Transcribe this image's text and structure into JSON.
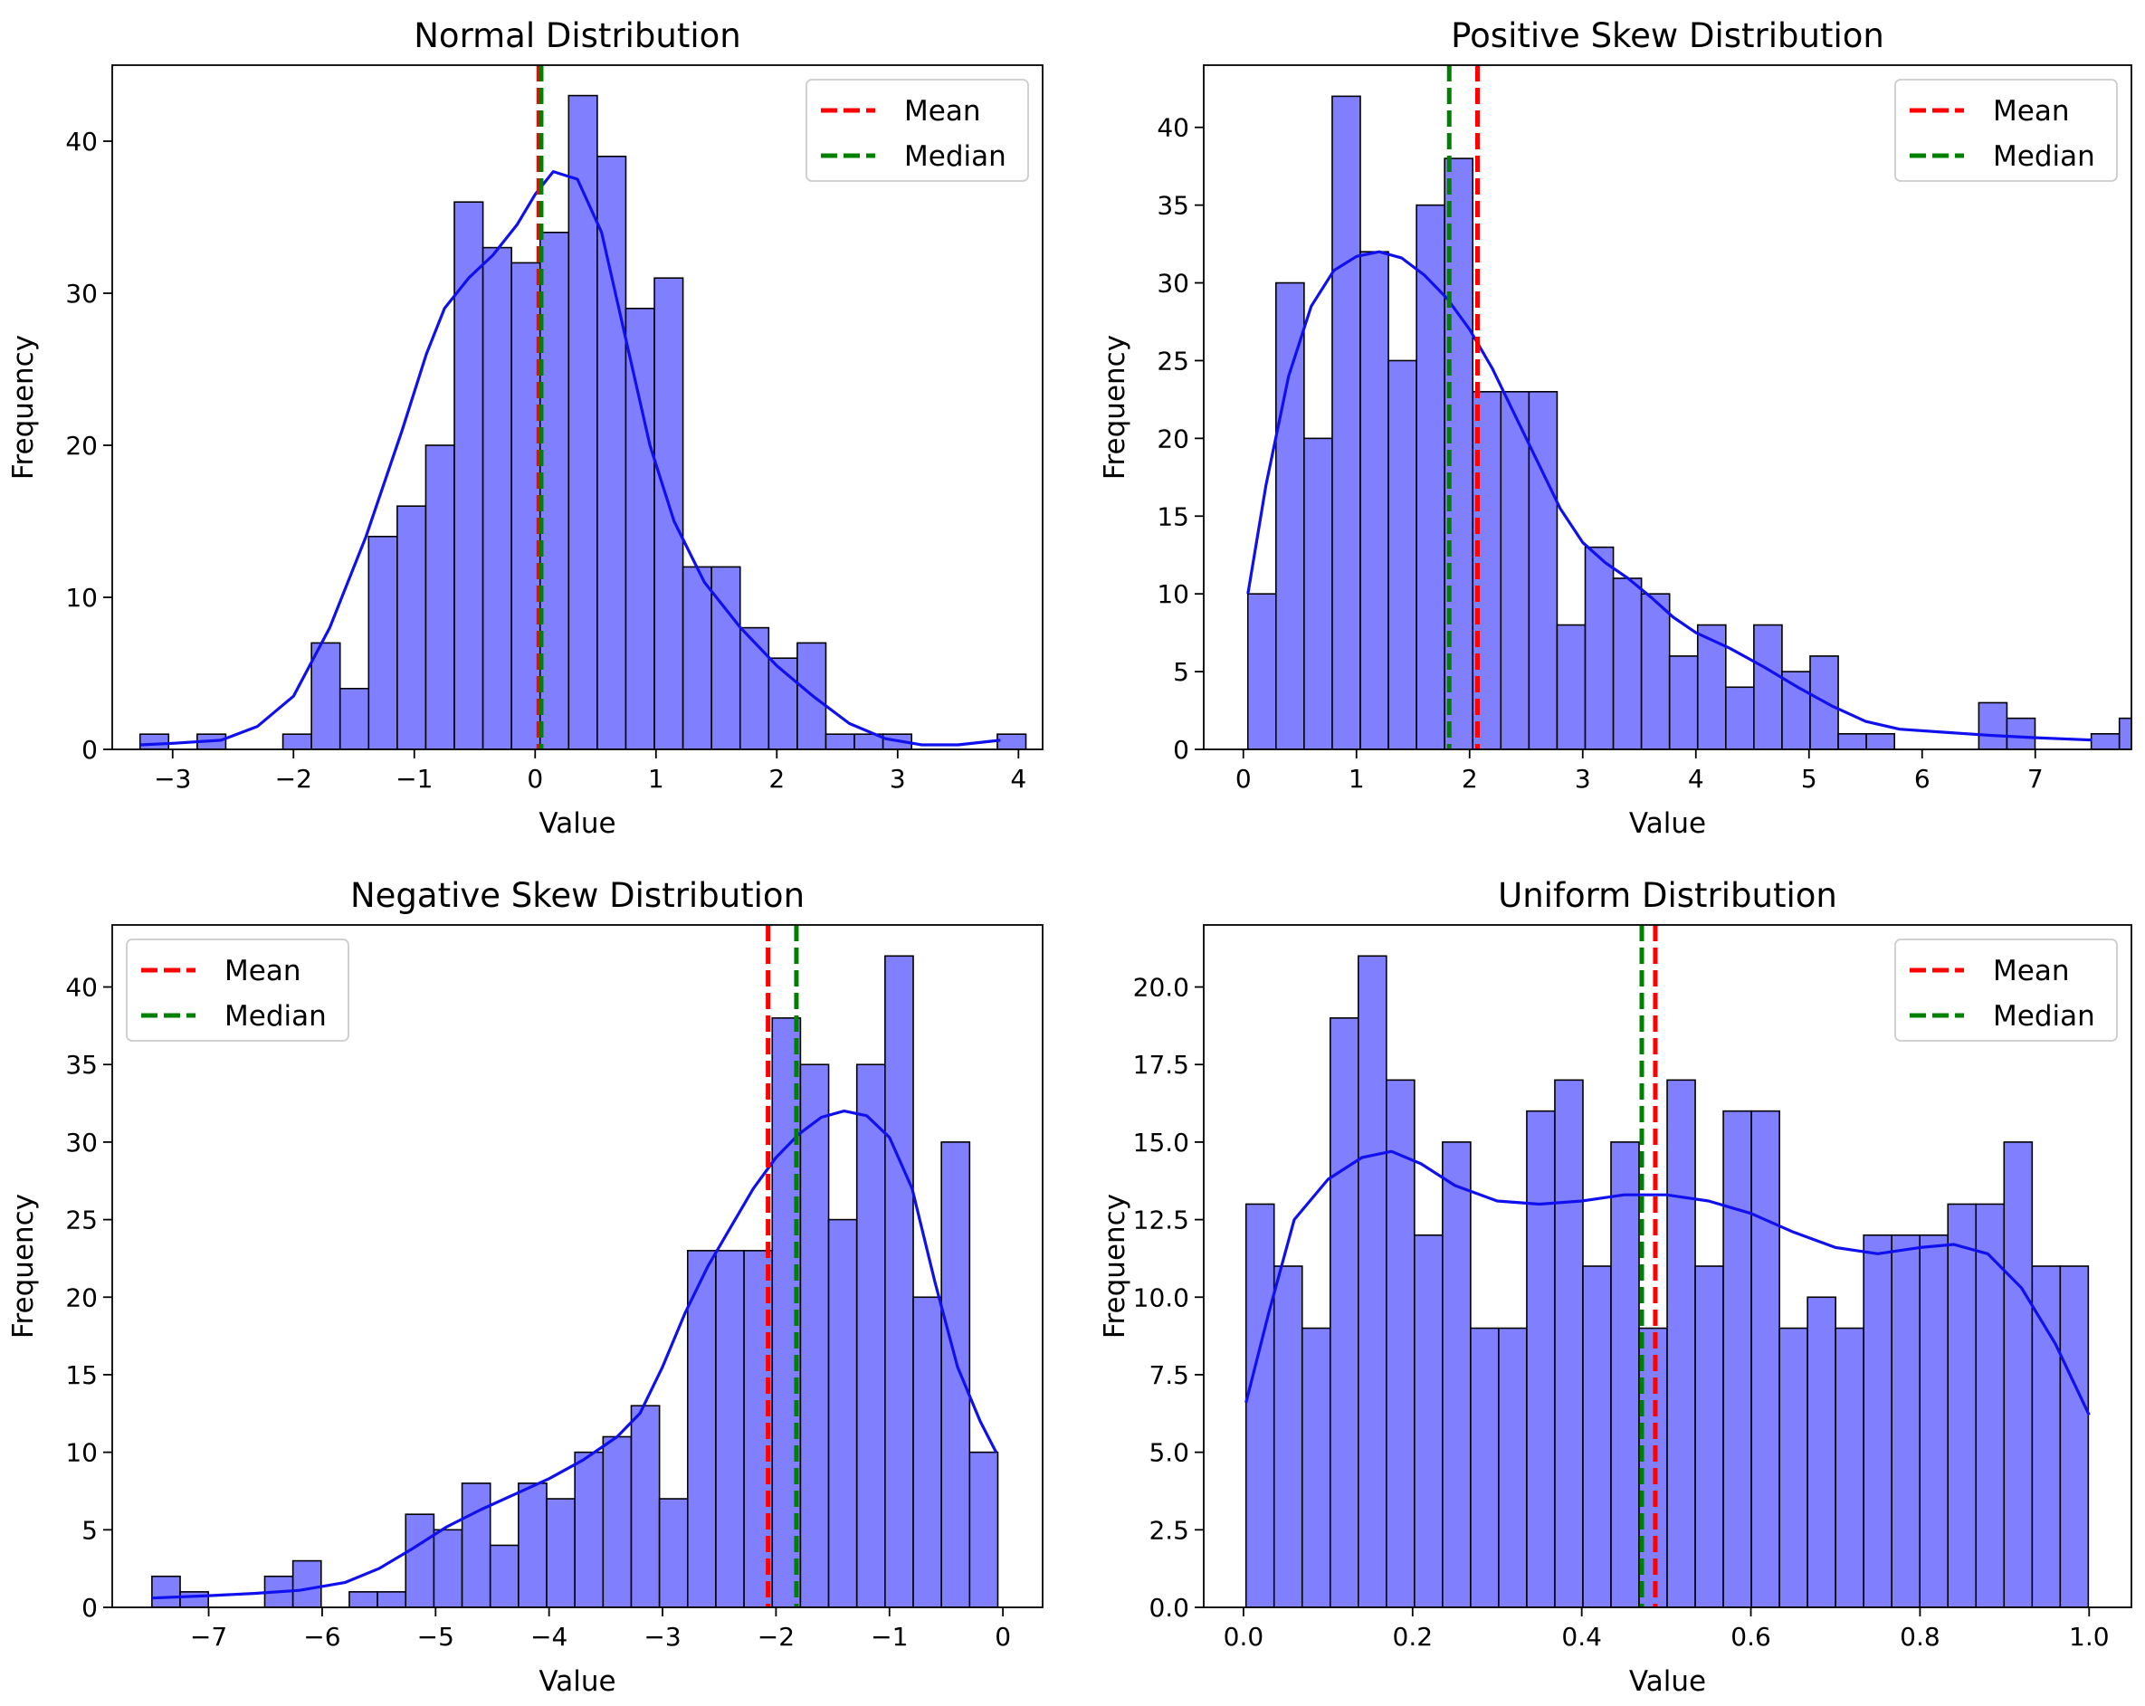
{
  "chart_data": [
    {
      "type": "histogram",
      "title": "Normal Distribution",
      "xlabel": "Value",
      "ylabel": "Frequency",
      "xlim": [
        -3.5,
        4.2
      ],
      "ylim": [
        0,
        45
      ],
      "xticks": [
        -3,
        -2,
        -1,
        0,
        1,
        2,
        3,
        4
      ],
      "xtick_labels": [
        "−3",
        "−2",
        "−1",
        "0",
        "1",
        "2",
        "3",
        "4"
      ],
      "yticks": [
        0,
        10,
        20,
        30,
        40
      ],
      "ytick_labels": [
        "0",
        "10",
        "20",
        "30",
        "40"
      ],
      "bin_start": -3.27,
      "bin_width": 0.2365,
      "counts": [
        1,
        0,
        1,
        0,
        0,
        1,
        7,
        4,
        14,
        16,
        20,
        36,
        33,
        32,
        34,
        43,
        39,
        29,
        31,
        12,
        12,
        8,
        6,
        7,
        1,
        1,
        1,
        0,
        0,
        0,
        1
      ],
      "kde": [
        [
          -3.27,
          0.3
        ],
        [
          -3.0,
          0.4
        ],
        [
          -2.6,
          0.6
        ],
        [
          -2.3,
          1.5
        ],
        [
          -2.0,
          3.5
        ],
        [
          -1.7,
          8
        ],
        [
          -1.4,
          14
        ],
        [
          -1.1,
          21
        ],
        [
          -0.9,
          26
        ],
        [
          -0.75,
          29
        ],
        [
          -0.55,
          31
        ],
        [
          -0.35,
          32.5
        ],
        [
          -0.15,
          34.5
        ],
        [
          0.0,
          36.5
        ],
        [
          0.15,
          38
        ],
        [
          0.35,
          37.5
        ],
        [
          0.55,
          34
        ],
        [
          0.75,
          27
        ],
        [
          0.95,
          20
        ],
        [
          1.15,
          15
        ],
        [
          1.4,
          11
        ],
        [
          1.7,
          8
        ],
        [
          2.0,
          5.5
        ],
        [
          2.3,
          3.5
        ],
        [
          2.6,
          1.7
        ],
        [
          2.9,
          0.7
        ],
        [
          3.2,
          0.3
        ],
        [
          3.5,
          0.3
        ],
        [
          3.85,
          0.6
        ]
      ],
      "mean": 0.03,
      "median": 0.05,
      "legend_position": "upper right",
      "legend": [
        "Mean",
        "Median"
      ]
    },
    {
      "type": "histogram",
      "title": "Positive Skew Distribution",
      "xlabel": "Value",
      "ylabel": "Frequency",
      "xlim": [
        -0.35,
        7.85
      ],
      "ylim": [
        0,
        44
      ],
      "xticks": [
        0,
        1,
        2,
        3,
        4,
        5,
        6,
        7
      ],
      "xtick_labels": [
        "0",
        "1",
        "2",
        "3",
        "4",
        "5",
        "6",
        "7"
      ],
      "yticks": [
        0,
        5,
        10,
        15,
        20,
        25,
        30,
        35,
        40
      ],
      "ytick_labels": [
        "0",
        "5",
        "10",
        "15",
        "20",
        "25",
        "30",
        "35",
        "40"
      ],
      "bin_start": 0.04,
      "bin_width": 0.2485,
      "counts": [
        10,
        30,
        20,
        42,
        32,
        25,
        35,
        38,
        23,
        23,
        23,
        8,
        13,
        11,
        10,
        6,
        8,
        4,
        8,
        5,
        6,
        1,
        1,
        0,
        0,
        0,
        3,
        2,
        0,
        0,
        1,
        2
      ],
      "kde": [
        [
          0.04,
          10
        ],
        [
          0.2,
          17
        ],
        [
          0.4,
          24
        ],
        [
          0.6,
          28.5
        ],
        [
          0.8,
          30.8
        ],
        [
          1.0,
          31.7
        ],
        [
          1.2,
          32
        ],
        [
          1.4,
          31.6
        ],
        [
          1.6,
          30.5
        ],
        [
          1.8,
          29
        ],
        [
          2.0,
          27
        ],
        [
          2.2,
          24.5
        ],
        [
          2.4,
          21.5
        ],
        [
          2.6,
          18.5
        ],
        [
          2.8,
          15.5
        ],
        [
          3.0,
          13.3
        ],
        [
          3.2,
          12
        ],
        [
          3.4,
          11
        ],
        [
          3.6,
          9.8
        ],
        [
          3.8,
          8.5
        ],
        [
          4.0,
          7.5
        ],
        [
          4.3,
          6.5
        ],
        [
          4.6,
          5.3
        ],
        [
          4.9,
          4
        ],
        [
          5.2,
          2.8
        ],
        [
          5.5,
          1.8
        ],
        [
          5.8,
          1.3
        ],
        [
          6.2,
          1.1
        ],
        [
          6.6,
          0.9
        ],
        [
          7.0,
          0.75
        ],
        [
          7.5,
          0.6
        ]
      ],
      "mean": 2.07,
      "median": 1.82,
      "legend_position": "upper right",
      "legend": [
        "Mean",
        "Median"
      ]
    },
    {
      "type": "histogram",
      "title": "Negative Skew Distribution",
      "xlabel": "Value",
      "ylabel": "Frequency",
      "xlim": [
        -7.85,
        0.35
      ],
      "ylim": [
        0,
        44
      ],
      "xticks": [
        -7,
        -6,
        -5,
        -4,
        -3,
        -2,
        -1,
        0
      ],
      "xtick_labels": [
        "−7",
        "−6",
        "−5",
        "−4",
        "−3",
        "−2",
        "−1",
        "0"
      ],
      "yticks": [
        0,
        5,
        10,
        15,
        20,
        25,
        30,
        35,
        40
      ],
      "ytick_labels": [
        "0",
        "5",
        "10",
        "15",
        "20",
        "25",
        "30",
        "35",
        "40"
      ],
      "bin_start": -7.5,
      "bin_width": 0.2485,
      "counts": [
        2,
        1,
        0,
        0,
        2,
        3,
        0,
        1,
        1,
        6,
        5,
        8,
        4,
        8,
        7,
        10,
        11,
        13,
        7,
        23,
        23,
        23,
        38,
        35,
        25,
        35,
        42,
        20,
        30,
        10
      ],
      "kde": [
        [
          -7.5,
          0.6
        ],
        [
          -7.0,
          0.75
        ],
        [
          -6.6,
          0.9
        ],
        [
          -6.2,
          1.1
        ],
        [
          -5.8,
          1.6
        ],
        [
          -5.5,
          2.5
        ],
        [
          -5.2,
          3.8
        ],
        [
          -4.9,
          5.2
        ],
        [
          -4.6,
          6.3
        ],
        [
          -4.3,
          7.3
        ],
        [
          -4.0,
          8.3
        ],
        [
          -3.7,
          9.5
        ],
        [
          -3.4,
          11
        ],
        [
          -3.2,
          12.5
        ],
        [
          -3.0,
          15.5
        ],
        [
          -2.8,
          19
        ],
        [
          -2.6,
          22
        ],
        [
          -2.4,
          24.5
        ],
        [
          -2.2,
          27
        ],
        [
          -2.0,
          29
        ],
        [
          -1.8,
          30.5
        ],
        [
          -1.6,
          31.6
        ],
        [
          -1.4,
          32
        ],
        [
          -1.2,
          31.7
        ],
        [
          -1.0,
          30.3
        ],
        [
          -0.8,
          27
        ],
        [
          -0.6,
          21
        ],
        [
          -0.4,
          15.5
        ],
        [
          -0.2,
          12
        ],
        [
          -0.06,
          10
        ]
      ],
      "mean": -2.07,
      "median": -1.82,
      "legend_position": "upper left",
      "legend": [
        "Mean",
        "Median"
      ]
    },
    {
      "type": "histogram",
      "title": "Uniform Distribution",
      "xlabel": "Value",
      "ylabel": "Frequency",
      "xlim": [
        -0.047,
        1.05
      ],
      "ylim": [
        0,
        22
      ],
      "xticks": [
        0.0,
        0.2,
        0.4,
        0.6,
        0.8,
        1.0
      ],
      "xtick_labels": [
        "0.0",
        "0.2",
        "0.4",
        "0.6",
        "0.8",
        "1.0"
      ],
      "yticks": [
        0,
        2.5,
        5,
        7.5,
        10,
        12.5,
        15,
        17.5,
        20
      ],
      "ytick_labels": [
        "0.0",
        "2.5",
        "5.0",
        "7.5",
        "10.0",
        "12.5",
        "15.0",
        "17.5",
        "20.0"
      ],
      "bin_start": 0.003,
      "bin_width": 0.0332,
      "counts": [
        13,
        11,
        9,
        19,
        21,
        17,
        12,
        15,
        9,
        9,
        16,
        17,
        11,
        15,
        9,
        17,
        11,
        16,
        16,
        9,
        10,
        9,
        12,
        12,
        12,
        13,
        13,
        15,
        11,
        11
      ],
      "kde": [
        [
          0.003,
          6.6
        ],
        [
          0.03,
          9.5
        ],
        [
          0.06,
          12.5
        ],
        [
          0.1,
          13.8
        ],
        [
          0.14,
          14.5
        ],
        [
          0.175,
          14.7
        ],
        [
          0.21,
          14.3
        ],
        [
          0.25,
          13.6
        ],
        [
          0.3,
          13.1
        ],
        [
          0.35,
          13.0
        ],
        [
          0.4,
          13.1
        ],
        [
          0.45,
          13.3
        ],
        [
          0.5,
          13.3
        ],
        [
          0.55,
          13.1
        ],
        [
          0.6,
          12.7
        ],
        [
          0.65,
          12.1
        ],
        [
          0.7,
          11.6
        ],
        [
          0.75,
          11.4
        ],
        [
          0.8,
          11.6
        ],
        [
          0.84,
          11.7
        ],
        [
          0.88,
          11.4
        ],
        [
          0.92,
          10.3
        ],
        [
          0.96,
          8.5
        ],
        [
          1.0,
          6.2
        ]
      ],
      "mean": 0.487,
      "median": 0.471,
      "legend_position": "upper right",
      "legend": [
        "Mean",
        "Median"
      ]
    }
  ],
  "colors": {
    "bar_fill": "#8080ff",
    "bar_edge": "#000000",
    "kde": "#1010ee",
    "mean": "#ff0000",
    "median": "#008000"
  }
}
